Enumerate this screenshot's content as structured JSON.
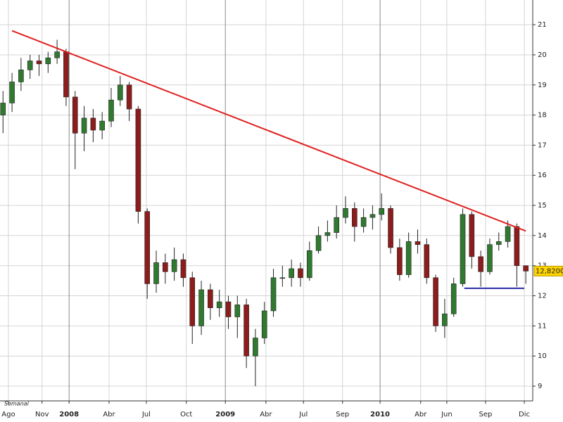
{
  "chart_data": {
    "type": "candlestick",
    "period_label": "Semanal",
    "grid": true,
    "up_color": "#2f7a2f",
    "down_color": "#8e1c1c",
    "x": [
      1,
      4,
      7,
      10,
      13,
      16,
      19,
      22,
      25,
      28,
      31,
      34,
      37,
      40,
      43,
      46,
      49,
      52,
      55,
      58,
      61,
      64,
      67,
      70,
      73,
      76,
      79,
      82,
      85,
      88,
      91,
      94,
      97,
      100,
      103,
      106,
      109,
      112,
      115,
      118,
      121,
      124,
      127,
      130,
      133,
      136,
      139,
      142,
      145,
      148,
      151,
      154,
      157,
      160,
      163,
      166,
      169,
      172,
      175
    ],
    "open": [
      18.0,
      18.4,
      19.1,
      19.5,
      19.8,
      19.7,
      19.9,
      20.1,
      18.6,
      17.4,
      17.9,
      17.5,
      17.8,
      18.5,
      19.0,
      18.2,
      14.8,
      12.4,
      13.1,
      12.8,
      13.2,
      12.6,
      11.0,
      12.2,
      11.6,
      11.8,
      11.3,
      11.7,
      10.0,
      10.6,
      11.5,
      12.6,
      12.6,
      12.9,
      12.6,
      13.5,
      14.0,
      14.1,
      14.6,
      14.9,
      14.3,
      14.6,
      14.7,
      14.9,
      13.6,
      12.7,
      13.8,
      13.7,
      12.6,
      11.0,
      11.4,
      12.4,
      14.7,
      13.3,
      12.8,
      13.7,
      13.8,
      14.3,
      13.0
    ],
    "high": [
      18.8,
      19.4,
      19.9,
      20.0,
      20.0,
      20.1,
      20.5,
      20.2,
      18.8,
      18.3,
      18.2,
      18.1,
      18.9,
      19.3,
      19.1,
      18.3,
      14.9,
      13.5,
      13.4,
      13.6,
      13.4,
      12.8,
      12.5,
      12.4,
      12.2,
      12.0,
      12.0,
      11.9,
      10.9,
      11.8,
      12.9,
      13.0,
      13.2,
      13.1,
      13.8,
      14.3,
      14.5,
      15.0,
      15.3,
      15.1,
      14.9,
      15.0,
      15.4,
      15.0,
      13.9,
      14.1,
      14.2,
      13.9,
      12.7,
      11.9,
      12.6,
      14.9,
      14.8,
      13.5,
      13.9,
      14.1,
      14.5,
      14.4,
      13.0
    ],
    "low": [
      17.4,
      18.1,
      18.8,
      19.2,
      19.3,
      19.4,
      19.7,
      18.3,
      16.2,
      16.8,
      17.1,
      17.2,
      17.6,
      18.3,
      17.8,
      14.4,
      11.9,
      12.1,
      12.4,
      12.5,
      12.3,
      10.4,
      10.7,
      11.2,
      11.3,
      10.9,
      10.6,
      9.6,
      9.0,
      10.4,
      11.3,
      12.3,
      12.3,
      12.3,
      12.5,
      13.4,
      13.8,
      13.9,
      14.4,
      13.8,
      14.1,
      14.2,
      14.5,
      13.4,
      12.5,
      12.6,
      13.4,
      12.4,
      10.8,
      10.6,
      11.3,
      12.3,
      12.9,
      12.3,
      12.7,
      13.5,
      13.6,
      12.3,
      12.4
    ],
    "close": [
      18.4,
      19.1,
      19.5,
      19.8,
      19.7,
      19.9,
      20.1,
      18.6,
      17.4,
      17.9,
      17.5,
      17.8,
      18.5,
      19.0,
      18.2,
      14.8,
      12.4,
      13.1,
      12.8,
      13.2,
      12.6,
      11.0,
      12.2,
      11.6,
      11.8,
      11.3,
      11.7,
      10.0,
      10.6,
      11.5,
      12.6,
      12.6,
      12.9,
      12.6,
      13.5,
      14.0,
      14.1,
      14.6,
      14.9,
      14.3,
      14.6,
      14.7,
      14.9,
      13.6,
      12.7,
      13.8,
      13.7,
      12.6,
      11.0,
      11.4,
      12.4,
      14.7,
      13.3,
      12.8,
      13.7,
      13.8,
      14.3,
      13.0,
      12.82
    ],
    "trendlines": [
      {
        "color": "#e02020",
        "x": [
          4,
          175
        ],
        "y": [
          20.8,
          14.15
        ]
      },
      {
        "color": "#2828a8",
        "x": [
          154.5,
          174.5
        ],
        "y": [
          12.25,
          12.25
        ]
      }
    ],
    "last_value": {
      "value": 12.82,
      "label": "12,8200"
    },
    "xlim": [
      0,
      177.3
    ],
    "ylim": [
      8.51,
      21.82
    ],
    "yticks": [
      9,
      10,
      11,
      12,
      13,
      14,
      15,
      16,
      17,
      18,
      19,
      20,
      21
    ],
    "xticks": [
      {
        "value": 2.8,
        "label": "Ago"
      },
      {
        "value": 14,
        "label": "Nov"
      },
      {
        "value": 23,
        "label": "2008"
      },
      {
        "value": 36.3,
        "label": "Abr"
      },
      {
        "value": 48.7,
        "label": "Jul"
      },
      {
        "value": 62,
        "label": "Oct"
      },
      {
        "value": 75,
        "label": "2009"
      },
      {
        "value": 88.5,
        "label": "Abr"
      },
      {
        "value": 101,
        "label": "Jul"
      },
      {
        "value": 114,
        "label": "Sep"
      },
      {
        "value": 126.5,
        "label": "2010"
      },
      {
        "value": 140,
        "label": "Abr"
      },
      {
        "value": 148.7,
        "label": "Jun"
      },
      {
        "value": 161.6,
        "label": "Sep"
      },
      {
        "value": 174.5,
        "label": "Dic"
      }
    ]
  }
}
